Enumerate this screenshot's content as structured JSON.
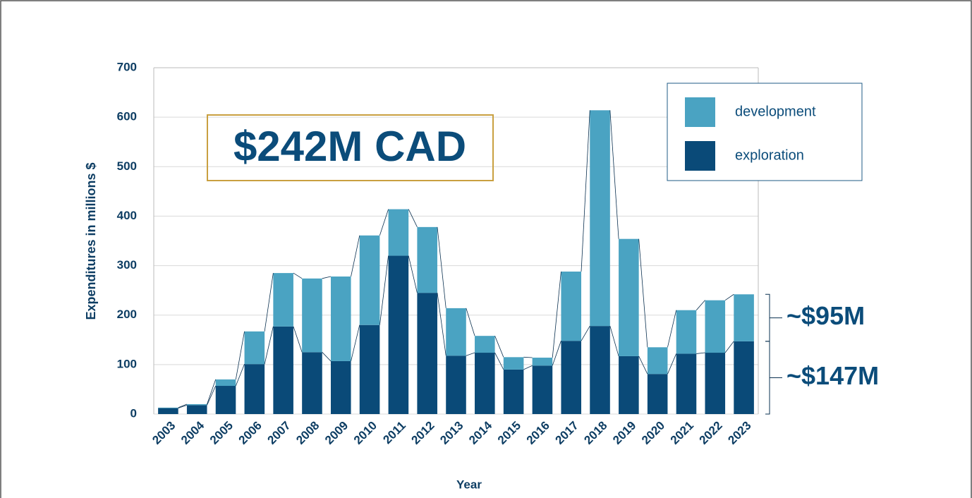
{
  "chart_data": {
    "type": "stacked_bar",
    "x_label": "Year",
    "y_label": "Expenditures in millions $",
    "categories": [
      "2003",
      "2004",
      "2005",
      "2006",
      "2007",
      "2008",
      "2009",
      "2010",
      "2011",
      "2012",
      "2013",
      "2014",
      "2015",
      "2016",
      "2017",
      "2018",
      "2019",
      "2020",
      "2021",
      "2022",
      "2023"
    ],
    "series": [
      {
        "name": "exploration",
        "color": "#0a4a78",
        "values": [
          12,
          18,
          57,
          101,
          177,
          125,
          107,
          180,
          320,
          245,
          118,
          124,
          90,
          98,
          148,
          178,
          117,
          81,
          122,
          124,
          147
        ]
      },
      {
        "name": "development",
        "color": "#4aa3c2",
        "values": [
          1,
          2,
          13,
          66,
          108,
          149,
          171,
          181,
          94,
          133,
          96,
          34,
          25,
          16,
          140,
          436,
          237,
          54,
          88,
          106,
          95
        ]
      }
    ],
    "ylim": [
      0,
      700
    ],
    "yticks": [
      0,
      100,
      200,
      300,
      400,
      500,
      600,
      700
    ],
    "grid": true,
    "annotations": [
      "$242M CAD",
      "~$95M",
      "~$147M"
    ]
  }
}
